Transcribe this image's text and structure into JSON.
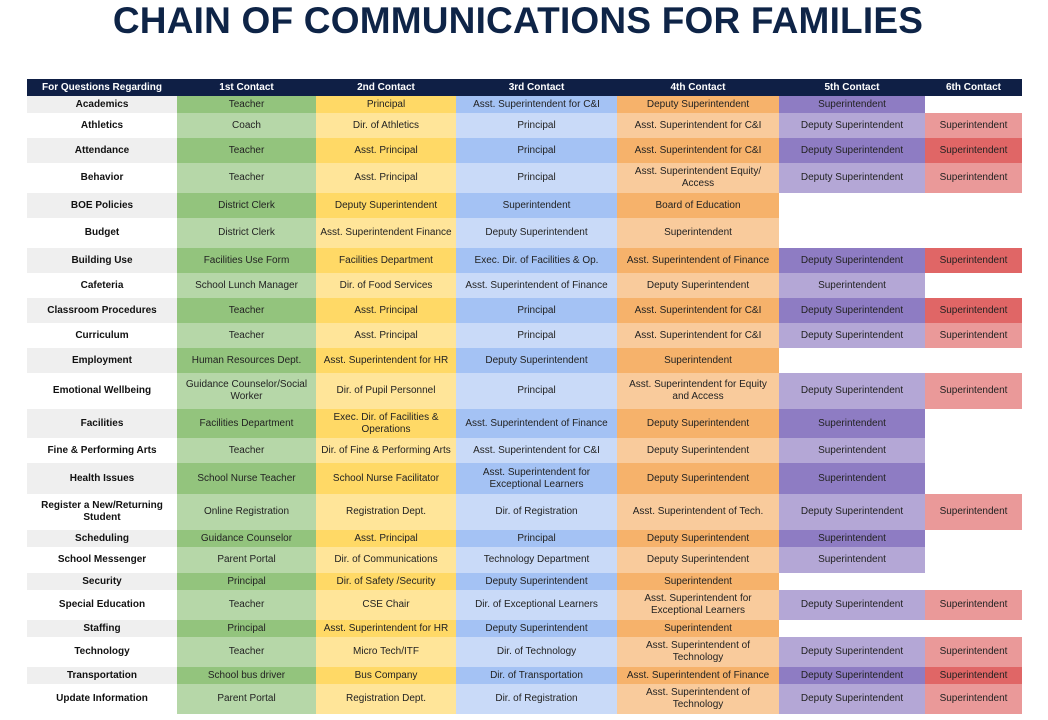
{
  "title": "CHAIN OF COMMUNICATIONS FOR FAMILIES",
  "headers": [
    "For Questions Regarding",
    "1st Contact",
    "2nd Contact",
    "3rd Contact",
    "4th Contact",
    "5th Contact",
    "6th Contact"
  ],
  "rows": [
    [
      "Academics",
      "Teacher",
      "Principal",
      "Asst. Superintendent for C&I",
      "Deputy Superintendent",
      "Superintendent",
      ""
    ],
    [
      "Athletics",
      "Coach",
      "Dir. of Athletics",
      "Principal",
      "Asst. Superintendent for C&I",
      "Deputy Superintendent",
      "Superintendent"
    ],
    [
      "Attendance",
      "Teacher",
      "Asst. Principal",
      "Principal",
      "Asst. Superintendent for C&I",
      "Deputy Superintendent",
      "Superintendent"
    ],
    [
      "Behavior",
      "Teacher",
      "Asst. Principal",
      "Principal",
      "Asst. Superintendent Equity/ Access",
      "Deputy Superintendent",
      "Superintendent"
    ],
    [
      "BOE Policies",
      "District Clerk",
      "Deputy Superintendent",
      "Superintendent",
      "Board of Education",
      "",
      ""
    ],
    [
      "Budget",
      "District Clerk",
      "Asst. Superintendent Finance",
      "Deputy Superintendent",
      "Superintendent",
      "",
      ""
    ],
    [
      "Building Use",
      "Facilities Use Form",
      "Facilities Department",
      "Exec. Dir. of Facilities & Op.",
      "Asst. Superintendent of Finance",
      "Deputy Superintendent",
      "Superintendent"
    ],
    [
      "Cafeteria",
      "School Lunch Manager",
      "Dir. of Food Services",
      "Asst. Superintendent of Finance",
      "Deputy Superintendent",
      "Superintendent",
      ""
    ],
    [
      "Classroom Procedures",
      "Teacher",
      "Asst. Principal",
      "Principal",
      "Asst. Superintendent for C&I",
      "Deputy Superintendent",
      "Superintendent"
    ],
    [
      "Curriculum",
      "Teacher",
      "Asst. Principal",
      "Principal",
      "Asst. Superintendent for C&I",
      "Deputy Superintendent",
      "Superintendent"
    ],
    [
      "Employment",
      "Human Resources Dept.",
      "Asst. Superintendent for HR",
      "Deputy Superintendent",
      "Superintendent",
      "",
      ""
    ],
    [
      "Emotional Wellbeing",
      "Guidance Counselor/Social Worker",
      "Dir. of Pupil Personnel",
      "Principal",
      "Asst. Superintendent for Equity and Access",
      "Deputy Superintendent",
      "Superintendent"
    ],
    [
      "Facilities",
      "Facilities Department",
      "Exec. Dir. of Facilities & Operations",
      "Asst. Superintendent of Finance",
      "Deputy Superintendent",
      "Superintendent",
      ""
    ],
    [
      "Fine & Performing Arts",
      "Teacher",
      "Dir. of Fine & Performing Arts",
      "Asst. Superintendent for C&I",
      "Deputy Superintendent",
      "Superintendent",
      ""
    ],
    [
      "Health Issues",
      "School Nurse Teacher",
      "School Nurse Facilitator",
      "Asst. Superintendent for Exceptional Learners",
      "Deputy Superintendent",
      "Superintendent",
      ""
    ],
    [
      "Register a New/Returning Student",
      "Online Registration",
      "Registration Dept.",
      "Dir. of Registration",
      "Asst. Superintendent of Tech.",
      "Deputy Superintendent",
      "Superintendent"
    ],
    [
      "Scheduling",
      "Guidance Counselor",
      "Asst. Principal",
      "Principal",
      "Deputy Superintendent",
      "Superintendent",
      ""
    ],
    [
      "School Messenger",
      "Parent Portal",
      "Dir. of Communications",
      "Technology Department",
      "Deputy Superintendent",
      "Superintendent",
      ""
    ],
    [
      "Security",
      "Principal",
      "Dir. of Safety /Security",
      "Deputy Superintendent",
      "Superintendent",
      "",
      ""
    ],
    [
      "Special Education",
      "Teacher",
      "CSE Chair",
      "Dir. of Exceptional Learners",
      "Asst. Superintendent for Exceptional Learners",
      "Deputy Superintendent",
      "Superintendent"
    ],
    [
      "Staffing",
      "Principal",
      "Asst. Superintendent for HR",
      "Deputy Superintendent",
      "Superintendent",
      "",
      ""
    ],
    [
      "Technology",
      "Teacher",
      "Micro Tech/ITF",
      "Dir. of Technology",
      "Asst. Superintendent of Technology",
      "Deputy Superintendent",
      "Superintendent"
    ],
    [
      "Transportation",
      "School bus driver",
      "Bus Company",
      "Dir. of Transportation",
      "Asst. Superintendent of Finance",
      "Deputy Superintendent",
      "Superintendent"
    ],
    [
      "Update Information",
      "Parent Portal",
      "Registration Dept.",
      "Dir. of Registration",
      "Asst. Superintendent of Technology",
      "Deputy Superintendent",
      "Superintendent"
    ]
  ]
}
